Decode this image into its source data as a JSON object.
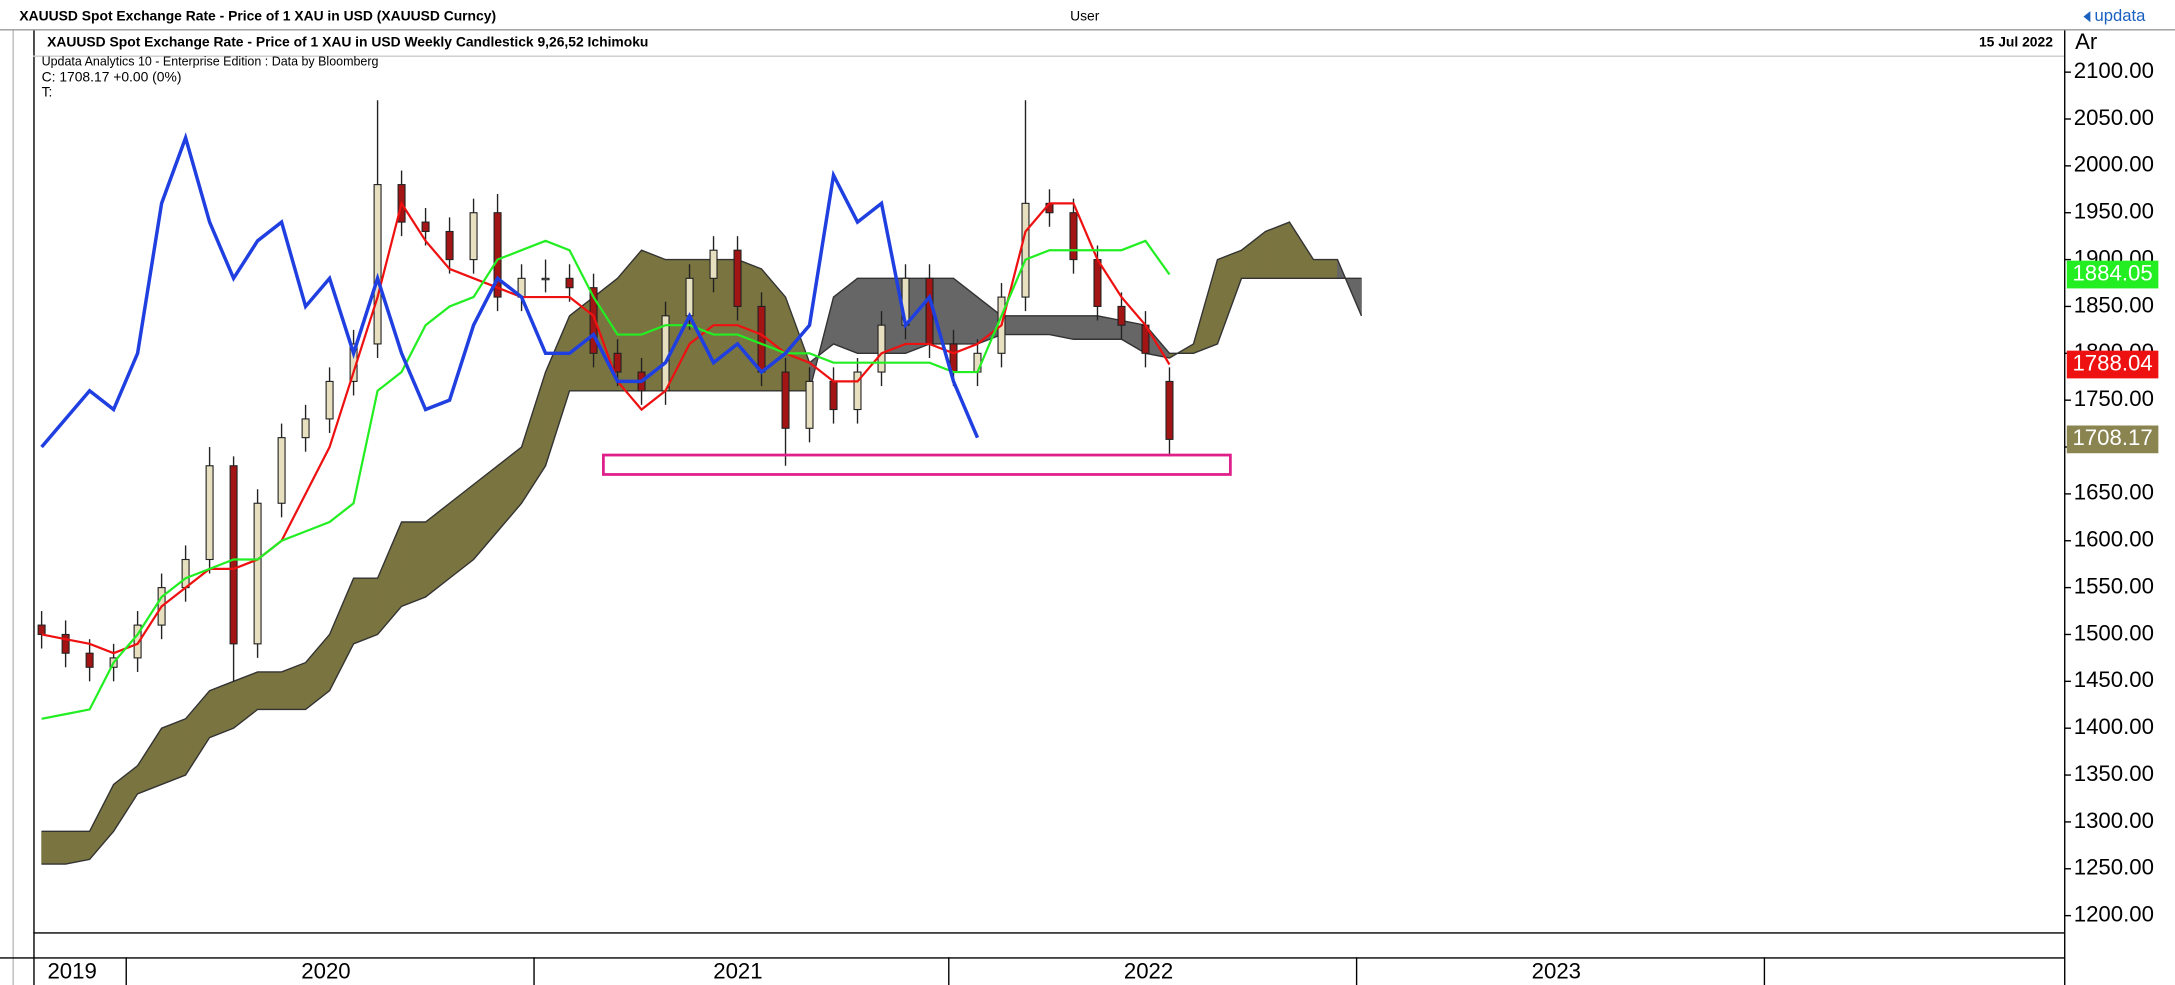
{
  "header": {
    "instrument": "XAUUSD Spot Exchange Rate - Price of 1 XAU in USD (XAUUSD Curncy)",
    "user": "User",
    "logo": "updata",
    "date": "15 Jul 2022",
    "corner": "Ar"
  },
  "chart_data": {
    "type": "candlestick",
    "title": "XAUUSD Spot Exchange Rate - Price of 1 XAU in USD Weekly Candlestick  9,26,52 Ichimoku",
    "subtitle": "Updata Analytics 10 - Enterprise Edition : Data by Bloomberg",
    "info_close": "C: 1708.17  +0.00 (0%)",
    "info_t": "T:",
    "x_labels": [
      "2019",
      "2020",
      "2021",
      "2022",
      "2023"
    ],
    "categories": [
      null,
      null,
      null,
      null,
      null,
      null,
      null,
      null,
      null,
      null,
      null,
      null,
      null,
      null,
      null,
      null,
      null,
      null,
      null,
      null,
      null,
      null,
      null,
      null,
      null,
      null,
      null,
      null,
      null,
      null,
      null,
      null,
      null,
      null,
      null,
      null,
      null,
      null,
      null,
      null,
      null,
      null,
      null,
      null,
      null,
      null,
      null,
      null,
      null,
      null,
      null,
      null,
      null,
      null,
      null,
      null
    ],
    "open": [
      1510,
      1500,
      1480,
      1465,
      1475,
      1510,
      1550,
      1580,
      1680,
      1490,
      1640,
      1710,
      1730,
      1770,
      1810,
      1980,
      1940,
      1930,
      1900,
      1950,
      1860,
      1880,
      1880,
      1870,
      1800,
      1780,
      1760,
      1840,
      1880,
      1910,
      1850,
      1780,
      1720,
      1770,
      1740,
      1780,
      1830,
      1880,
      1810,
      1780,
      1800,
      1860,
      1960,
      1950,
      1900,
      1850,
      1830,
      1770,
      null,
      null,
      null,
      null,
      null,
      null,
      null,
      null
    ],
    "high": [
      1525,
      1515,
      1495,
      1490,
      1525,
      1565,
      1595,
      1700,
      1690,
      1655,
      1725,
      1745,
      1785,
      1825,
      2070,
      1995,
      1955,
      1945,
      1965,
      1970,
      1895,
      1900,
      1895,
      1885,
      1815,
      1795,
      1855,
      1895,
      1925,
      1925,
      1865,
      1795,
      1785,
      1785,
      1795,
      1845,
      1895,
      1895,
      1825,
      1815,
      1875,
      2070,
      1975,
      1965,
      1915,
      1865,
      1845,
      1785,
      null,
      null,
      null,
      null,
      null,
      null,
      null,
      null
    ],
    "low": [
      1485,
      1465,
      1450,
      1450,
      1460,
      1495,
      1535,
      1565,
      1450,
      1475,
      1625,
      1695,
      1715,
      1755,
      1795,
      1925,
      1915,
      1885,
      1885,
      1845,
      1845,
      1865,
      1855,
      1785,
      1765,
      1745,
      1745,
      1825,
      1865,
      1835,
      1765,
      1680,
      1705,
      1725,
      1725,
      1765,
      1815,
      1795,
      1765,
      1765,
      1785,
      1845,
      1935,
      1885,
      1835,
      1815,
      1785,
      1690,
      null,
      null,
      null,
      null,
      null,
      null,
      null,
      null
    ],
    "close": [
      1500,
      1480,
      1465,
      1475,
      1510,
      1550,
      1580,
      1680,
      1490,
      1640,
      1710,
      1730,
      1770,
      1810,
      1980,
      1940,
      1930,
      1900,
      1950,
      1860,
      1880,
      1880,
      1870,
      1800,
      1780,
      1760,
      1840,
      1880,
      1910,
      1850,
      1780,
      1720,
      1770,
      1740,
      1780,
      1830,
      1880,
      1810,
      1780,
      1800,
      1860,
      1960,
      1950,
      1900,
      1850,
      1830,
      1800,
      1708.17,
      null,
      null,
      null,
      null,
      null,
      null,
      null,
      null
    ],
    "up_color": "#e6dfc0",
    "down_color": "#a31515",
    "close_label_color": "#8a8450",
    "series": [
      {
        "color": "#ee1111",
        "values": [
          1500,
          1495,
          1490,
          1480,
          1490,
          1530,
          1550,
          1570,
          1570,
          1580,
          1600,
          1650,
          1700,
          1780,
          1860,
          1960,
          1920,
          1890,
          1880,
          1870,
          1860,
          1860,
          1860,
          1840,
          1770,
          1740,
          1760,
          1810,
          1830,
          1830,
          1820,
          1800,
          1790,
          1770,
          1770,
          1800,
          1810,
          1810,
          1800,
          1810,
          1830,
          1930,
          1960,
          1960,
          1900,
          1860,
          1830,
          1788.04,
          null,
          null,
          null,
          null,
          null,
          null,
          null,
          null
        ]
      },
      {
        "color": "#22ee22",
        "values": [
          1410,
          1415,
          1420,
          1470,
          1500,
          1540,
          1560,
          1570,
          1580,
          1580,
          1600,
          1610,
          1620,
          1640,
          1760,
          1780,
          1830,
          1850,
          1860,
          1900,
          1910,
          1920,
          1910,
          1860,
          1820,
          1820,
          1830,
          1830,
          1820,
          1820,
          1810,
          1800,
          1800,
          1790,
          1790,
          1790,
          1790,
          1790,
          1780,
          1780,
          1840,
          1900,
          1910,
          1910,
          1910,
          1910,
          1920,
          1884.05,
          null,
          null,
          null,
          null,
          null,
          null,
          null,
          null
        ]
      },
      {
        "color": "#1f3fe0",
        "values": [
          1700,
          1730,
          1760,
          1740,
          1800,
          1960,
          2030,
          1940,
          1880,
          1920,
          1940,
          1850,
          1880,
          1800,
          1880,
          1800,
          1740,
          1750,
          1830,
          1880,
          1860,
          1800,
          1800,
          1820,
          1770,
          1770,
          1790,
          1840,
          1790,
          1810,
          1780,
          1800,
          1830,
          1990,
          1940,
          1960,
          1830,
          1860,
          1770,
          1710,
          null,
          null,
          null,
          null,
          null,
          null,
          null,
          null,
          null,
          null,
          null,
          null,
          null,
          null,
          null,
          null
        ]
      }
    ],
    "cloud": {
      "span_a": [
        1290,
        1290,
        1290,
        1340,
        1360,
        1400,
        1410,
        1440,
        1450,
        1460,
        1460,
        1470,
        1500,
        1560,
        1560,
        1620,
        1620,
        1640,
        1660,
        1680,
        1700,
        1780,
        1840,
        1860,
        1880,
        1910,
        1900,
        1900,
        1900,
        1900,
        1890,
        1860,
        1790,
        1810,
        1800,
        1800,
        1800,
        1810,
        1810,
        1810,
        1820,
        1820,
        1820,
        1815,
        1815,
        1815,
        1800,
        1795,
        1810,
        1900,
        1910,
        1930,
        1940,
        1900,
        1900,
        1840
      ],
      "span_b": [
        1255,
        1255,
        1260,
        1290,
        1330,
        1340,
        1350,
        1390,
        1400,
        1420,
        1420,
        1420,
        1440,
        1490,
        1500,
        1530,
        1540,
        1560,
        1580,
        1610,
        1640,
        1680,
        1760,
        1760,
        1760,
        1760,
        1760,
        1760,
        1760,
        1760,
        1760,
        1760,
        1760,
        1860,
        1880,
        1880,
        1880,
        1880,
        1880,
        1860,
        1840,
        1840,
        1840,
        1840,
        1840,
        1835,
        1830,
        1800,
        1800,
        1810,
        1880,
        1880,
        1880,
        1880,
        1880,
        1880
      ],
      "bull_color": "#7a7440",
      "bear_color": "#666666"
    },
    "ylim": [
      1200,
      2100
    ],
    "yticks": [
      {
        "value": 1200,
        "label": "1200.00"
      },
      {
        "value": 1250,
        "label": "1250.00"
      },
      {
        "value": 1300,
        "label": "1300.00"
      },
      {
        "value": 1350,
        "label": "1350.00"
      },
      {
        "value": 1400,
        "label": "1400.00"
      },
      {
        "value": 1450,
        "label": "1450.00"
      },
      {
        "value": 1500,
        "label": "1500.00"
      },
      {
        "value": 1550,
        "label": "1550.00"
      },
      {
        "value": 1600,
        "label": "1600.00"
      },
      {
        "value": 1650,
        "label": "1650.00"
      },
      {
        "value": 1700,
        "label": "1700.00"
      },
      {
        "value": 1750,
        "label": "1750.00"
      },
      {
        "value": 1800,
        "label": "1800.00"
      },
      {
        "value": 1850,
        "label": "1850.00"
      },
      {
        "value": 1900,
        "label": "1900.00"
      },
      {
        "value": 1950,
        "label": "1950.00"
      },
      {
        "value": 2000,
        "label": "2000.00"
      },
      {
        "value": 2050,
        "label": "2050.00"
      },
      {
        "value": 2100,
        "label": "2100.00"
      }
    ]
  }
}
